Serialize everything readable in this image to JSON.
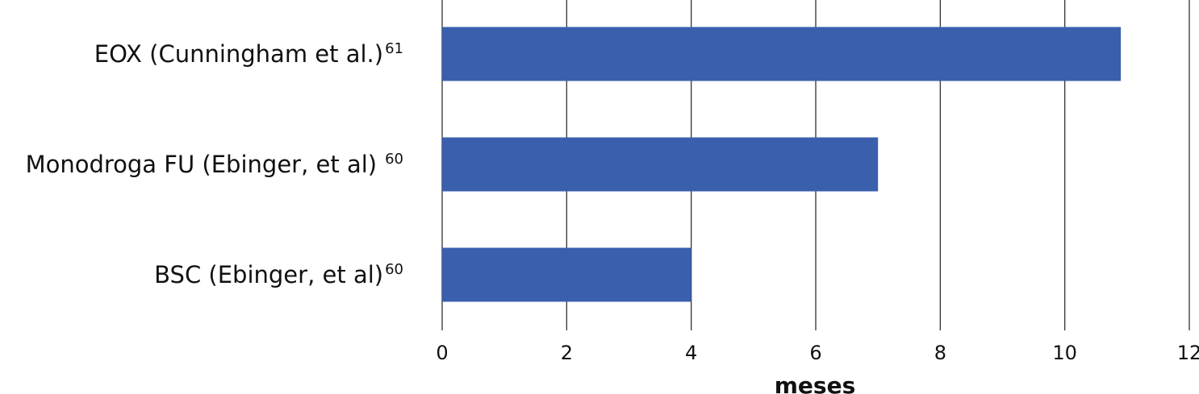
{
  "chart_data": {
    "type": "hbar",
    "categories": [
      "EOX (Cunningham et al.)",
      "Monodroga FU (Ebinger, et al)",
      "BSC (Ebinger, et al)"
    ],
    "category_superscripts": [
      "61",
      "60",
      "60"
    ],
    "values": [
      10.9,
      7,
      4
    ],
    "color": "#3a5fad",
    "x_label": "meses",
    "xlim": [
      0,
      12
    ],
    "xticks": [
      0,
      2,
      4,
      6,
      8,
      10,
      12
    ],
    "grid": true
  }
}
